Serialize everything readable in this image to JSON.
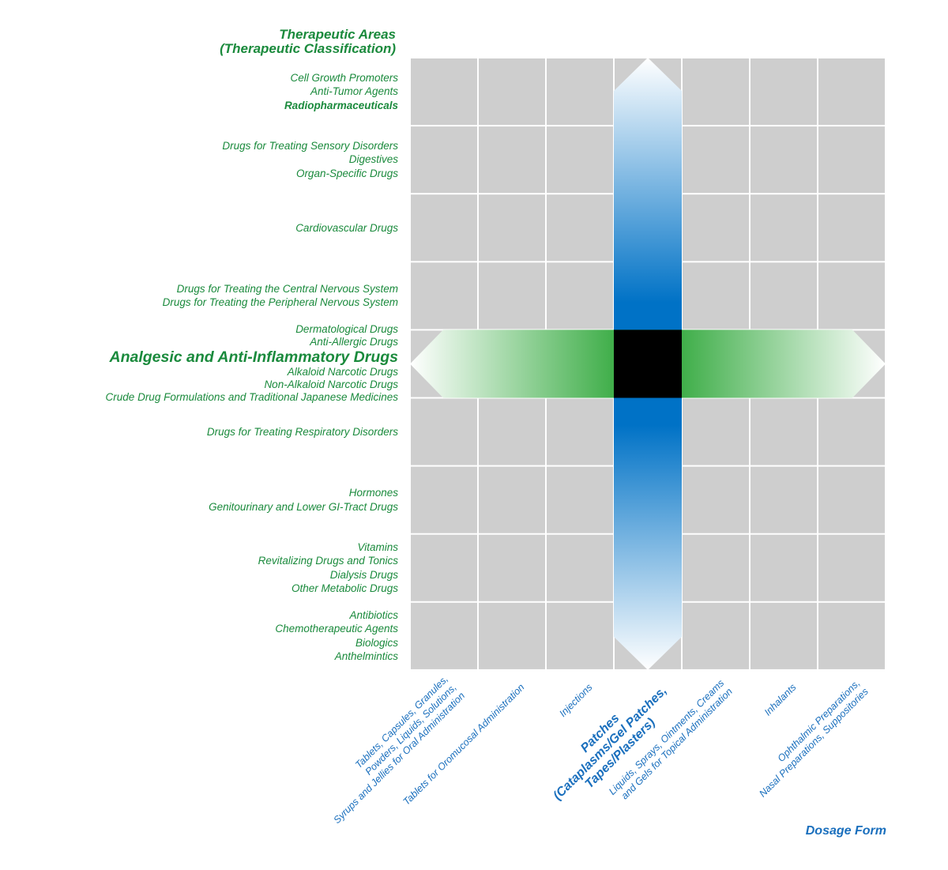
{
  "y_axis": {
    "title_line1": "Therapeutic Areas",
    "title_line2": "(Therapeutic Classification)",
    "groups": [
      {
        "lines": [
          {
            "text": "Cell Growth Promoters"
          },
          {
            "text": "Anti-Tumor Agents"
          },
          {
            "text": "Radiopharmaceuticals",
            "bold": true
          }
        ]
      },
      {
        "lines": [
          {
            "text": "Drugs for Treating Sensory Disorders"
          },
          {
            "text": "Digestives"
          },
          {
            "text": "Organ-Specific Drugs"
          }
        ]
      },
      {
        "lines": [
          {
            "text": "Cardiovascular Drugs"
          }
        ]
      },
      {
        "lines": [
          {
            "text": "Drugs for Treating the Central Nervous System"
          },
          {
            "text": "Drugs for Treating the Peripheral Nervous System"
          }
        ]
      },
      {
        "lines": [
          {
            "text": "Dermatological Drugs"
          },
          {
            "text": "Anti-Allergic Drugs"
          },
          {
            "text": "Analgesic and Anti-Inflammatory Drugs",
            "highlight": true
          },
          {
            "text": "Alkaloid Narcotic Drugs"
          },
          {
            "text": "Non-Alkaloid Narcotic Drugs"
          },
          {
            "text": "Crude Drug Formulations and Traditional Japanese Medicines"
          }
        ]
      },
      {
        "lines": [
          {
            "text": "Drugs for Treating Respiratory Disorders"
          }
        ]
      },
      {
        "lines": [
          {
            "text": "Hormones"
          },
          {
            "text": "Genitourinary and Lower GI-Tract Drugs"
          }
        ]
      },
      {
        "lines": [
          {
            "text": "Vitamins"
          },
          {
            "text": "Revitalizing Drugs and Tonics"
          },
          {
            "text": "Dialysis Drugs"
          },
          {
            "text": "Other Metabolic Drugs"
          }
        ]
      },
      {
        "lines": [
          {
            "text": "Antibiotics"
          },
          {
            "text": "Chemotherapeutic Agents"
          },
          {
            "text": "Biologics"
          },
          {
            "text": "Anthelmintics"
          }
        ]
      }
    ]
  },
  "x_axis": {
    "title": "Dosage Form",
    "categories": [
      {
        "lines": [
          "Tablets, Capsules, Granules,",
          "Powders, Liquids, Solutions,",
          "Syrups and Jellies for Oral Administration"
        ]
      },
      {
        "lines": [
          "Tablets for Oromucosal Administration"
        ]
      },
      {
        "lines": [
          "Injections"
        ]
      },
      {
        "lines": [
          "Patches",
          "(Cataplasms/Gel Patches,",
          "Tapes/Plasters)"
        ],
        "highlight": true
      },
      {
        "lines": [
          "Liquids, Sprays, Ointments, Creams",
          "and Gels for Topical Administration"
        ]
      },
      {
        "lines": [
          "Inhalants"
        ]
      },
      {
        "lines": [
          "Ophthalmic Preparations,",
          "Nasal Preparations, Suppositories"
        ]
      }
    ]
  },
  "highlight": {
    "row_index": 4,
    "column_index": 3
  },
  "colors": {
    "grid_cell": "#cecece",
    "grid_line": "#ffffff",
    "green_text": "#1a8a3c",
    "blue_text": "#1a6fbd",
    "vertical_arrow": "#0072c6",
    "horizontal_arrow": "#3fae49",
    "intersection": "#000000"
  }
}
